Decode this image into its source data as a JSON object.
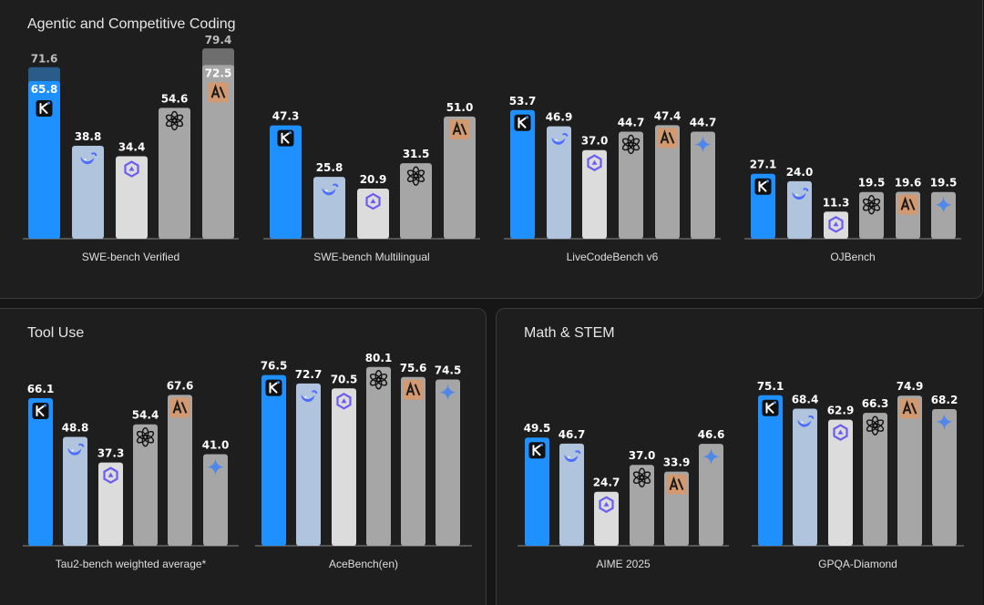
{
  "panels": [
    {
      "title": "Agentic and Competitive Coding"
    },
    {
      "title": "Tool Use"
    },
    {
      "title": "Math & STEM"
    }
  ],
  "colors": {
    "kimi": "#1e90ff",
    "deepseek": "#b0c4de",
    "qwen": "#dcdcdc",
    "openai": "#a6a6a6",
    "anthropic": "#a6a6a6",
    "gemini": "#a6a6a6",
    "overlay_label": "#8a8a8a",
    "anthropic_badge": "#d39a72"
  },
  "model_icons": [
    "kimi-icon",
    "deepseek-whale-icon",
    "qwen-icon",
    "openai-icon",
    "anthropic-icon",
    "gemini-icon"
  ],
  "chart_data": [
    {
      "type": "bar",
      "panel": 0,
      "title": "SWE-bench Verified",
      "bars": [
        {
          "model": "kimi",
          "value": 65.8,
          "extra": 71.6
        },
        {
          "model": "deepseek",
          "value": 38.8
        },
        {
          "model": "qwen",
          "value": 34.4
        },
        {
          "model": "openai",
          "value": 54.6
        },
        {
          "model": "anthropic",
          "value": 72.5,
          "extra": 79.4
        }
      ]
    },
    {
      "type": "bar",
      "panel": 0,
      "title": "SWE-bench Multilingual",
      "bars": [
        {
          "model": "kimi",
          "value": 47.3
        },
        {
          "model": "deepseek",
          "value": 25.8
        },
        {
          "model": "qwen",
          "value": 20.9
        },
        {
          "model": "openai",
          "value": 31.5
        },
        {
          "model": "anthropic",
          "value": 51.0
        }
      ]
    },
    {
      "type": "bar",
      "panel": 0,
      "title": "LiveCodeBench v6",
      "bars": [
        {
          "model": "kimi",
          "value": 53.7
        },
        {
          "model": "deepseek",
          "value": 46.9
        },
        {
          "model": "qwen",
          "value": 37.0
        },
        {
          "model": "openai",
          "value": 44.7
        },
        {
          "model": "anthropic",
          "value": 47.4
        },
        {
          "model": "gemini",
          "value": 44.7
        }
      ]
    },
    {
      "type": "bar",
      "panel": 0,
      "title": "OJBench",
      "bars": [
        {
          "model": "kimi",
          "value": 27.1
        },
        {
          "model": "deepseek",
          "value": 24.0
        },
        {
          "model": "qwen",
          "value": 11.3
        },
        {
          "model": "openai",
          "value": 19.5
        },
        {
          "model": "anthropic",
          "value": 19.6
        },
        {
          "model": "gemini",
          "value": 19.5
        }
      ]
    },
    {
      "type": "bar",
      "panel": 1,
      "title": "Tau2-bench weighted average*",
      "bars": [
        {
          "model": "kimi",
          "value": 66.1
        },
        {
          "model": "deepseek",
          "value": 48.8
        },
        {
          "model": "qwen",
          "value": 37.3
        },
        {
          "model": "openai",
          "value": 54.4
        },
        {
          "model": "anthropic",
          "value": 67.6
        },
        {
          "model": "gemini",
          "value": 41.0
        }
      ]
    },
    {
      "type": "bar",
      "panel": 1,
      "title": "AceBench(en)",
      "bars": [
        {
          "model": "kimi",
          "value": 76.5
        },
        {
          "model": "deepseek",
          "value": 72.7
        },
        {
          "model": "qwen",
          "value": 70.5
        },
        {
          "model": "openai",
          "value": 80.1
        },
        {
          "model": "anthropic",
          "value": 75.6
        },
        {
          "model": "gemini",
          "value": 74.5
        }
      ]
    },
    {
      "type": "bar",
      "panel": 2,
      "title": "AIME 2025",
      "bars": [
        {
          "model": "kimi",
          "value": 49.5
        },
        {
          "model": "deepseek",
          "value": 46.7
        },
        {
          "model": "qwen",
          "value": 24.7
        },
        {
          "model": "openai",
          "value": 37.0
        },
        {
          "model": "anthropic",
          "value": 33.9
        },
        {
          "model": "gemini",
          "value": 46.6
        }
      ]
    },
    {
      "type": "bar",
      "panel": 2,
      "title": "GPQA-Diamond",
      "bars": [
        {
          "model": "kimi",
          "value": 75.1
        },
        {
          "model": "deepseek",
          "value": 68.4
        },
        {
          "model": "qwen",
          "value": 62.9
        },
        {
          "model": "openai",
          "value": 66.3
        },
        {
          "model": "anthropic",
          "value": 74.9
        },
        {
          "model": "gemini",
          "value": 68.2
        }
      ]
    }
  ]
}
